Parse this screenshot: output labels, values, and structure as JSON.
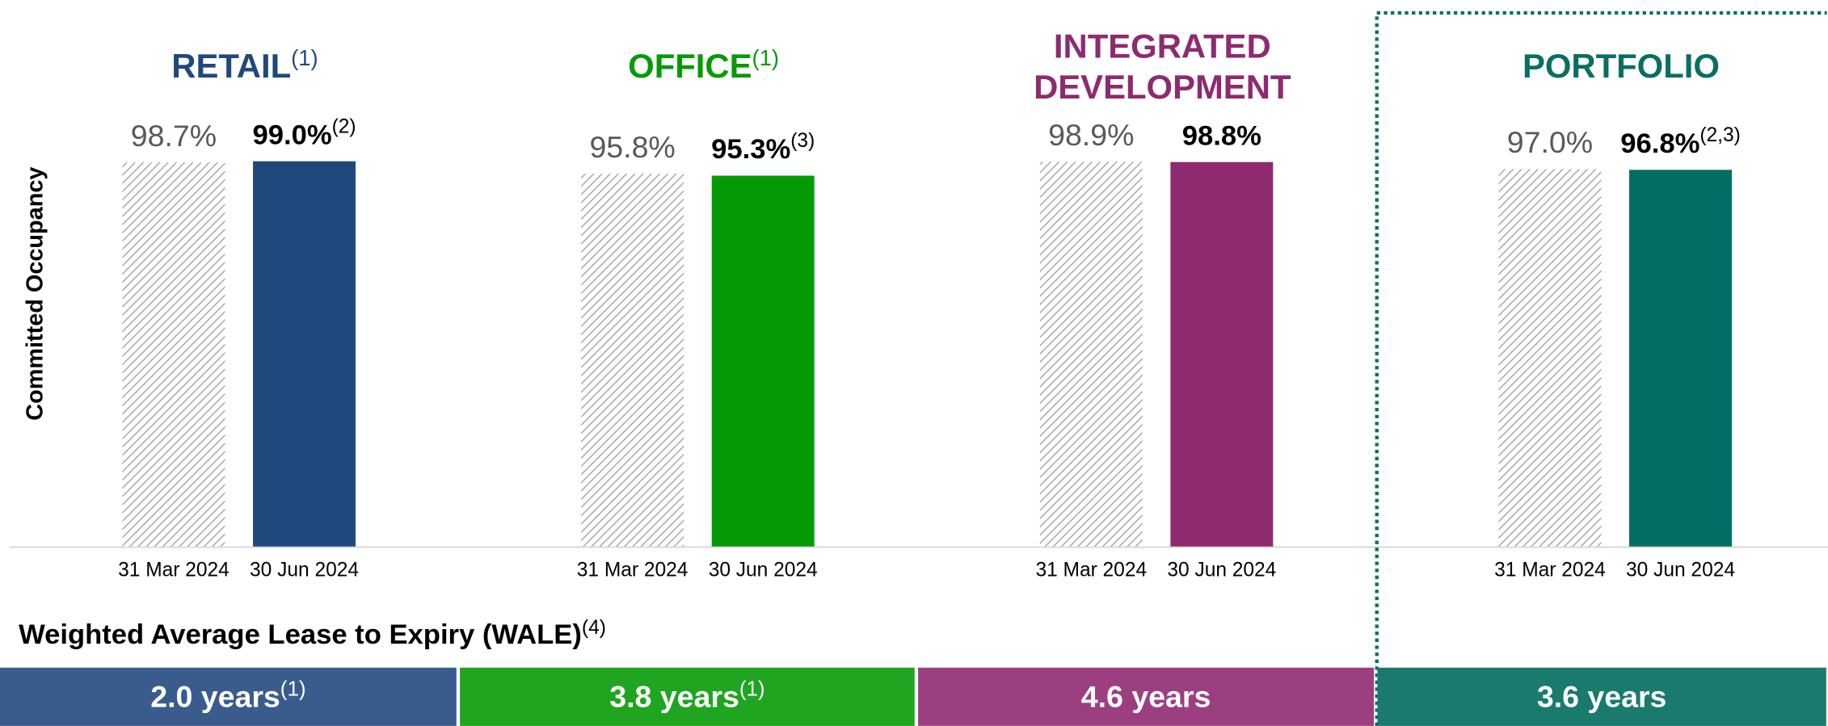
{
  "y_label": "Committed Occupancy",
  "chart_data": [
    {
      "type": "bar",
      "title": [
        "RETAIL"
      ],
      "title_note": "(1)",
      "title_color": "#1f497d",
      "categories": [
        "31 Mar 2024",
        "30 Jun 2024"
      ],
      "values": [
        98.7,
        99.0
      ],
      "value_labels": [
        "98.7%",
        "99.0%"
      ],
      "value_footnotes": [
        null,
        "(2)"
      ],
      "colors": [
        "#a6a6a6",
        "#1f497d"
      ],
      "hatch": [
        true,
        false
      ],
      "ylim": [
        0,
        100
      ]
    },
    {
      "type": "bar",
      "title": [
        "OFFICE"
      ],
      "title_note": "(1)",
      "title_color": "#079a07",
      "categories": [
        "31 Mar 2024",
        "30 Jun 2024"
      ],
      "values": [
        95.8,
        95.3
      ],
      "value_labels": [
        "95.8%",
        "95.3%"
      ],
      "value_footnotes": [
        null,
        "(3)"
      ],
      "colors": [
        "#a6a6a6",
        "#079a07"
      ],
      "hatch": [
        true,
        false
      ],
      "ylim": [
        0,
        100
      ]
    },
    {
      "type": "bar",
      "title": [
        "INTEGRATED",
        "DEVELOPMENT"
      ],
      "title_color": "#8e2a70",
      "categories": [
        "31 Mar 2024",
        "30 Jun 2024"
      ],
      "values": [
        98.9,
        98.8
      ],
      "value_labels": [
        "98.9%",
        "98.8%"
      ],
      "value_footnotes": [
        null,
        null
      ],
      "colors": [
        "#a6a6a6",
        "#8e2a70"
      ],
      "hatch": [
        true,
        false
      ],
      "ylim": [
        0,
        100
      ]
    },
    {
      "type": "bar",
      "title": [
        "PORTFOLIO"
      ],
      "title_color": "#0a6e62",
      "categories": [
        "31 Mar 2024",
        "30 Jun 2024"
      ],
      "values": [
        97.0,
        96.8
      ],
      "value_labels": [
        "97.0%",
        "96.8%"
      ],
      "value_footnotes": [
        null,
        "(2,3)"
      ],
      "colors": [
        "#a6a6a6",
        "#006e62"
      ],
      "hatch": [
        true,
        false
      ],
      "ylim": [
        0,
        100
      ]
    }
  ],
  "wale": {
    "title": "Weighted Average Lease to Expiry (WALE)",
    "title_note": "(4)",
    "items": [
      {
        "label": "2.0 years",
        "note": "(1)",
        "color": "#3a5c8c"
      },
      {
        "label": "3.8 years",
        "note": "(1)",
        "color": "#1fa51f"
      },
      {
        "label": "4.6 years",
        "color": "#9c3f80"
      },
      {
        "label": "3.6 years",
        "color": "#1a7a6d"
      }
    ]
  }
}
